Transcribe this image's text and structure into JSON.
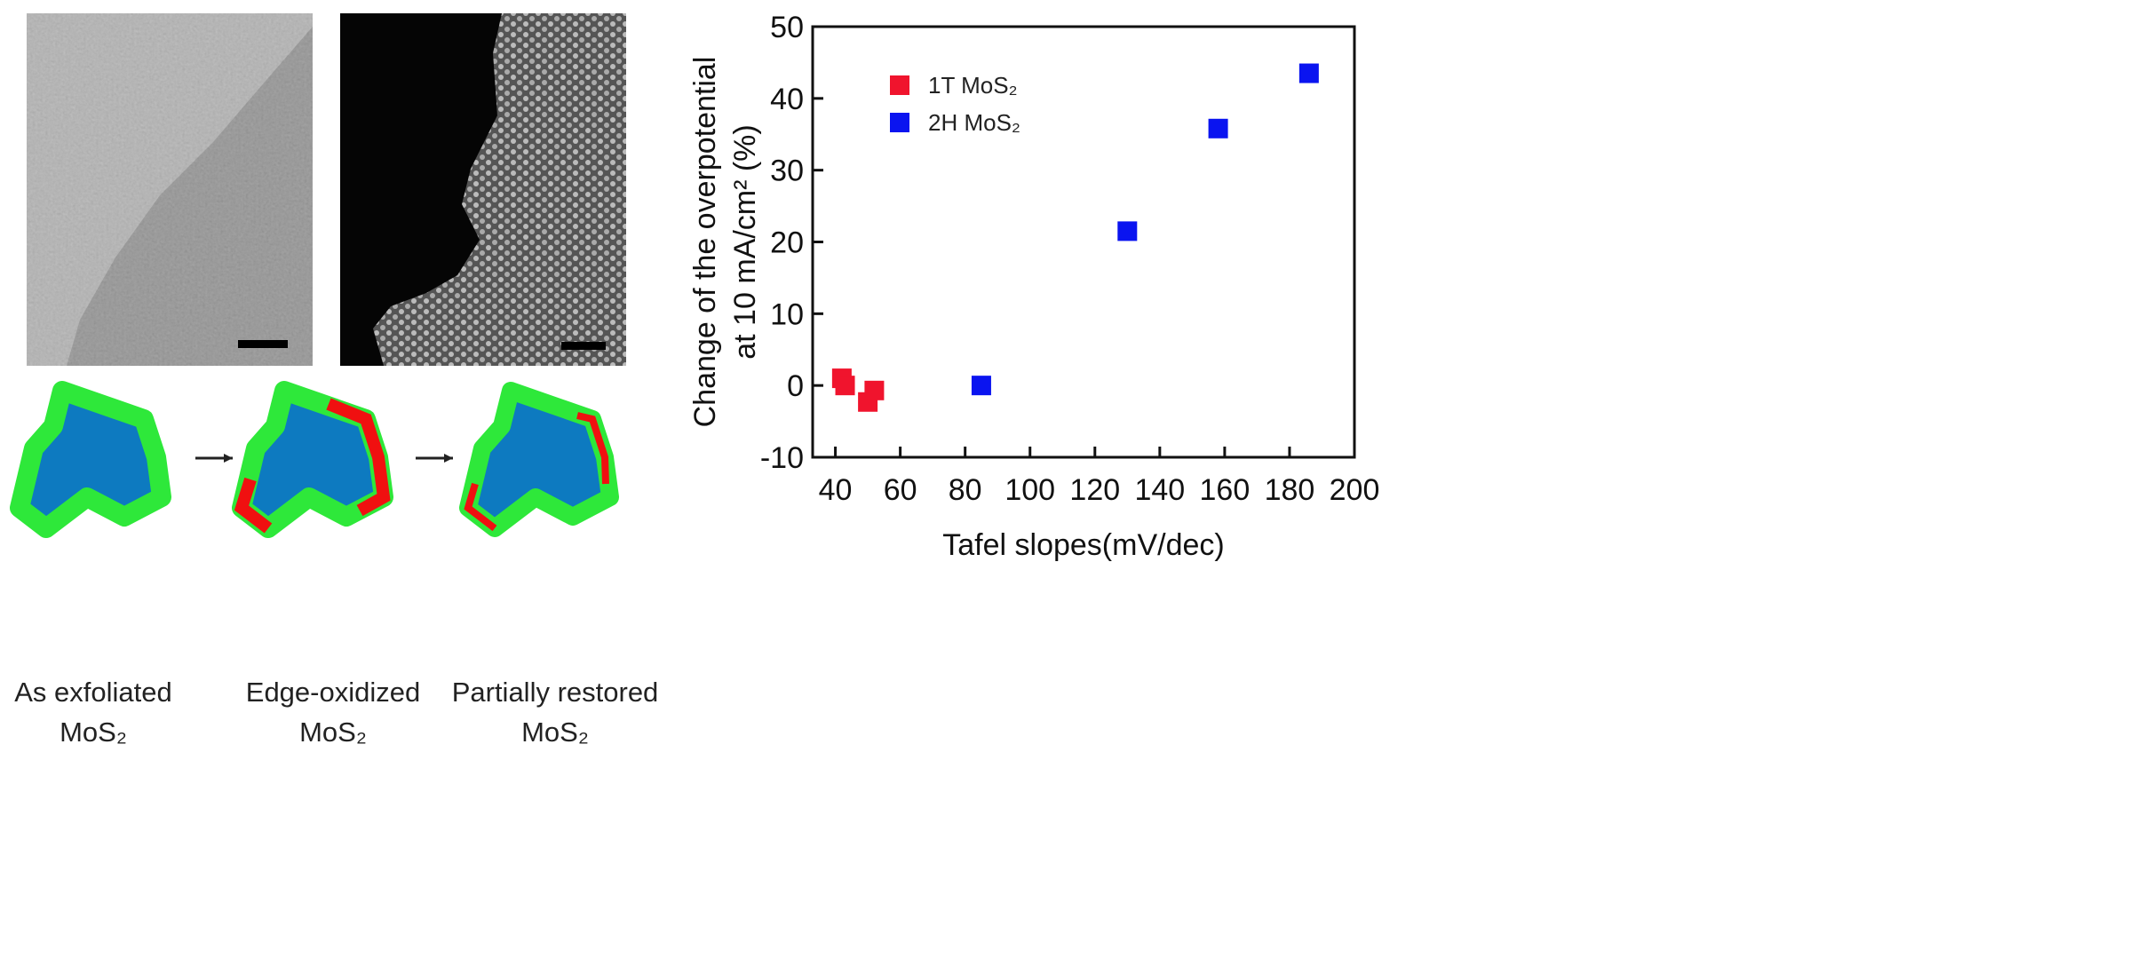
{
  "chart_data": {
    "type": "scatter",
    "x_label": "Tafel slopes(mV/dec)",
    "y_label": [
      "Change of the overpotential",
      "at 10 mA/cm² (%)"
    ],
    "xlim": [
      33,
      200
    ],
    "xticks": [
      40,
      60,
      80,
      100,
      120,
      140,
      160,
      180,
      200
    ],
    "ylim": [
      -10,
      50
    ],
    "yticks": [
      -10,
      0,
      10,
      20,
      30,
      40,
      50
    ],
    "legend": "upper left",
    "series": [
      {
        "name": "1T MoS₂",
        "color": "#f0142d",
        "x": [
          42,
          43,
          50,
          52
        ],
        "values": [
          1,
          0,
          -2.3,
          -0.7
        ]
      },
      {
        "name": "2H MoS₂",
        "color": "#0a14f0",
        "x": [
          85,
          130,
          158,
          186
        ],
        "values": [
          0,
          21.5,
          35.8,
          43.5
        ]
      }
    ]
  },
  "diagram": {
    "captions": [
      [
        "As exfoliated",
        "MoS₂"
      ],
      [
        "Edge-oxidized",
        "MoS₂"
      ],
      [
        "Partially restored",
        "MoS₂"
      ]
    ]
  }
}
